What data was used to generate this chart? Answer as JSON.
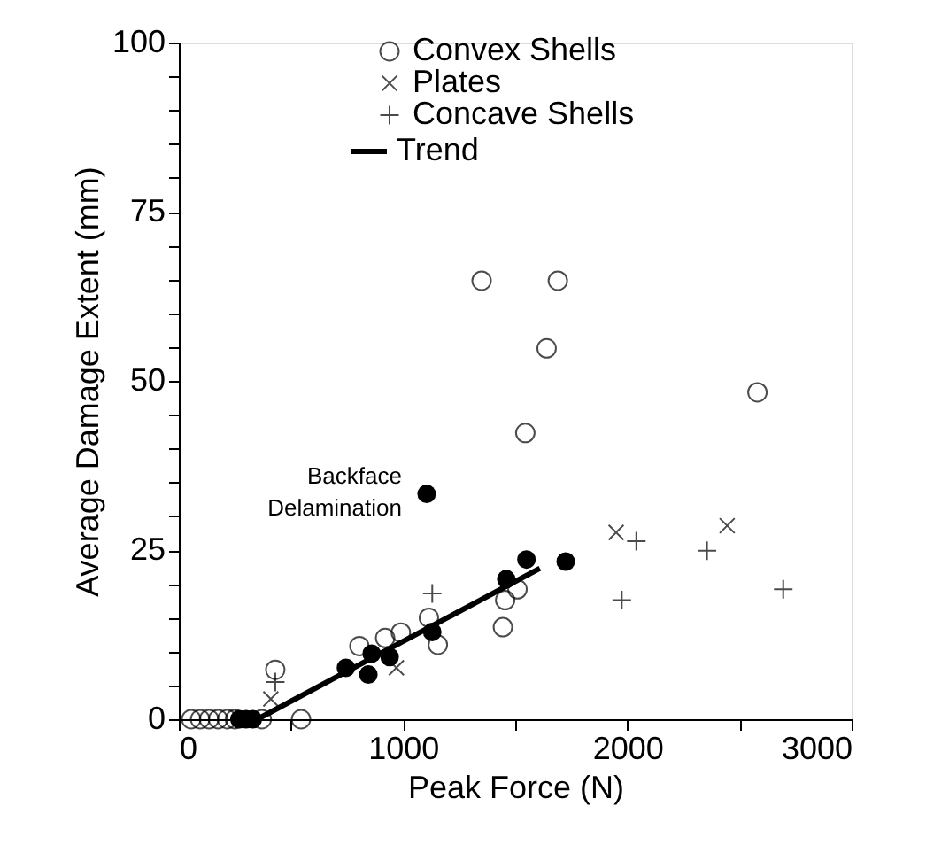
{
  "chart_data": {
    "type": "scatter",
    "xlabel": "Peak Force (N)",
    "ylabel": "Average Damage Extent (mm)",
    "xlim": [
      0,
      3000
    ],
    "ylim": [
      0,
      100
    ],
    "xticks": [
      0,
      {
        "value": 500,
        "label": null
      },
      1000,
      {
        "value": 1500,
        "label": null
      },
      2000,
      {
        "value": 2500,
        "label": null
      },
      3000
    ],
    "yticks": [
      0,
      {
        "value": 5,
        "label": null
      },
      {
        "value": 10,
        "label": null
      },
      {
        "value": 15,
        "label": null
      },
      {
        "value": 20,
        "label": null
      },
      25,
      {
        "value": 30,
        "label": null
      },
      {
        "value": 35,
        "label": null
      },
      {
        "value": 40,
        "label": null
      },
      {
        "value": 45,
        "label": null
      },
      50,
      {
        "value": 55,
        "label": null
      },
      {
        "value": 60,
        "label": null
      },
      {
        "value": 65,
        "label": null
      },
      {
        "value": 70,
        "label": null
      },
      75,
      {
        "value": 80,
        "label": null
      },
      {
        "value": 85,
        "label": null
      },
      {
        "value": 90,
        "label": null
      },
      {
        "value": 95,
        "label": null
      },
      100
    ],
    "grid": false,
    "legend": "top",
    "series": [
      {
        "name": "Convex Shells",
        "color": "#000000",
        "marker": "circle",
        "x": [
          55,
          95,
          135,
          175,
          215,
          250,
          370,
          545,
          430,
          805,
          920,
          990,
          1115,
          1155,
          1445,
          1455,
          1510,
          1690,
          1640,
          1545,
          2580,
          1350
        ],
        "values": [
          0,
          0,
          0,
          0,
          0,
          0,
          0,
          0,
          7.3,
          10.8,
          12,
          12.8,
          15,
          11,
          13.6,
          17.6,
          19.2,
          64.8,
          54.8,
          42.3,
          48.3,
          64.8
        ]
      },
      {
        "name": "Plates",
        "color": "#000000",
        "marker": "cross",
        "x": [
          410,
          970,
          1950,
          2445
        ],
        "values": [
          3,
          7.6,
          27.6,
          28.6
        ]
      },
      {
        "name": "Concave Shells",
        "color": "#000000",
        "marker": "plus",
        "x": [
          430,
          1130,
          2040,
          1975,
          2355,
          2695
        ],
        "values": [
          5.5,
          18.6,
          26.3,
          17.6,
          24.9,
          19.2
        ]
      },
      {
        "color": "#000000",
        "marker": "filled_circle",
        "x": [
          270,
          300,
          330,
          745,
          845,
          860,
          940,
          1130,
          1460,
          1550,
          1725,
          1105
        ],
        "values": [
          0,
          0,
          0,
          7.6,
          6.6,
          9.7,
          9.2,
          12.9,
          20.7,
          23.6,
          23.3,
          33.3
        ]
      },
      {
        "name": "Trend",
        "type": "line",
        "color": "#000000",
        "x": [
          350,
          1610
        ],
        "values": [
          0,
          22.3
        ]
      }
    ],
    "annotations": [
      {
        "text": "Backface\nDelamination",
        "x": 1105,
        "y": 33.3
      }
    ]
  }
}
